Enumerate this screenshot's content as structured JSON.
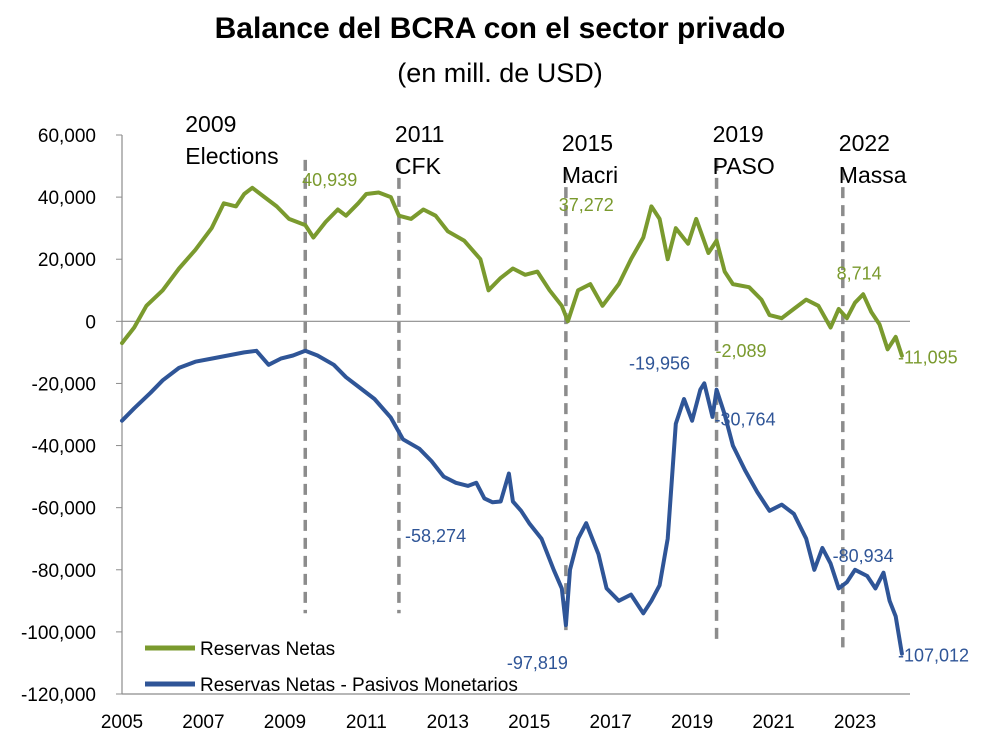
{
  "chart_data": {
    "type": "line",
    "title": "Balance del BCRA con el sector privado",
    "subtitle": "(en mill. de USD)",
    "xlabel": "",
    "ylabel": "",
    "xlim": [
      2005,
      2024.35
    ],
    "ylim": [
      -120000,
      60000
    ],
    "yticks": [
      60000,
      40000,
      20000,
      0,
      -20000,
      -40000,
      -60000,
      -80000,
      -100000,
      -120000
    ],
    "ytick_labels": [
      "60,000",
      "40,000",
      "20,000",
      "0",
      "-20,000",
      "-40,000",
      "-60,000",
      "-80,000",
      "-100,000",
      "-120,000"
    ],
    "xticks": [
      2005,
      2007,
      2009,
      2011,
      2013,
      2015,
      2017,
      2019,
      2021,
      2023
    ],
    "xtick_labels": [
      "2005",
      "2007",
      "2009",
      "2011",
      "2013",
      "2015",
      "2017",
      "2019",
      "2021",
      "2023"
    ],
    "legend_position": "bottom-left",
    "events": [
      {
        "x": 2009.5,
        "y_top": 52000,
        "y_bottom": -94000,
        "year": "2009",
        "label": "Elections"
      },
      {
        "x": 2011.8,
        "y_top": 52000,
        "y_bottom": -94000,
        "year": "2011",
        "label": "CFK"
      },
      {
        "x": 2015.9,
        "y_top": 49000,
        "y_bottom": -100000,
        "year": "2015",
        "label": "Macri"
      },
      {
        "x": 2019.6,
        "y_top": 52000,
        "y_bottom": -103000,
        "year": "2019",
        "label": "PASO"
      },
      {
        "x": 2022.7,
        "y_top": 49000,
        "y_bottom": -105000,
        "year": "2022",
        "label": "Massa"
      }
    ],
    "series": [
      {
        "name": "Reservas Netas",
        "color": "#7a9a2e",
        "points": [
          [
            2005.0,
            -7000
          ],
          [
            2005.3,
            -2000
          ],
          [
            2005.6,
            5000
          ],
          [
            2006.0,
            10000
          ],
          [
            2006.4,
            17000
          ],
          [
            2006.8,
            23000
          ],
          [
            2007.2,
            30000
          ],
          [
            2007.5,
            38000
          ],
          [
            2007.8,
            37000
          ],
          [
            2008.0,
            41000
          ],
          [
            2008.2,
            43000
          ],
          [
            2008.5,
            40000
          ],
          [
            2008.8,
            37000
          ],
          [
            2009.1,
            33000
          ],
          [
            2009.5,
            31000
          ],
          [
            2009.7,
            27000
          ],
          [
            2010.0,
            32000
          ],
          [
            2010.3,
            36000
          ],
          [
            2010.5,
            34000
          ],
          [
            2010.8,
            38000
          ],
          [
            2011.0,
            41000
          ],
          [
            2011.3,
            41500
          ],
          [
            2011.6,
            40000
          ],
          [
            2011.8,
            34000
          ],
          [
            2012.1,
            33000
          ],
          [
            2012.4,
            36000
          ],
          [
            2012.7,
            34000
          ],
          [
            2013.0,
            29000
          ],
          [
            2013.4,
            26000
          ],
          [
            2013.8,
            20000
          ],
          [
            2014.0,
            10000
          ],
          [
            2014.3,
            14000
          ],
          [
            2014.6,
            17000
          ],
          [
            2014.9,
            15000
          ],
          [
            2015.2,
            16000
          ],
          [
            2015.5,
            10000
          ],
          [
            2015.8,
            5000
          ],
          [
            2015.95,
            0
          ],
          [
            2016.2,
            10000
          ],
          [
            2016.5,
            12000
          ],
          [
            2016.8,
            5000
          ],
          [
            2017.2,
            12000
          ],
          [
            2017.5,
            20000
          ],
          [
            2017.8,
            27000
          ],
          [
            2018.0,
            37000
          ],
          [
            2018.2,
            33000
          ],
          [
            2018.4,
            20000
          ],
          [
            2018.6,
            30000
          ],
          [
            2018.9,
            25000
          ],
          [
            2019.1,
            33000
          ],
          [
            2019.4,
            22000
          ],
          [
            2019.6,
            26000
          ],
          [
            2019.8,
            16000
          ],
          [
            2020.0,
            12000
          ],
          [
            2020.4,
            11000
          ],
          [
            2020.7,
            7000
          ],
          [
            2020.9,
            2000
          ],
          [
            2021.2,
            1000
          ],
          [
            2021.5,
            4000
          ],
          [
            2021.8,
            7000
          ],
          [
            2022.1,
            5000
          ],
          [
            2022.4,
            -2000
          ],
          [
            2022.6,
            4000
          ],
          [
            2022.8,
            1000
          ],
          [
            2023.0,
            6000
          ],
          [
            2023.2,
            8714
          ],
          [
            2023.4,
            3000
          ],
          [
            2023.6,
            -1000
          ],
          [
            2023.8,
            -9000
          ],
          [
            2024.0,
            -5000
          ],
          [
            2024.15,
            -11095
          ]
        ]
      },
      {
        "name": "Reservas Netas - Pasivos Monetarios",
        "color": "#2f5597",
        "points": [
          [
            2005.0,
            -32000
          ],
          [
            2005.3,
            -28000
          ],
          [
            2005.7,
            -23000
          ],
          [
            2006.0,
            -19000
          ],
          [
            2006.4,
            -15000
          ],
          [
            2006.8,
            -13000
          ],
          [
            2007.2,
            -12000
          ],
          [
            2007.6,
            -11000
          ],
          [
            2008.0,
            -10000
          ],
          [
            2008.3,
            -9500
          ],
          [
            2008.6,
            -14000
          ],
          [
            2008.9,
            -12000
          ],
          [
            2009.2,
            -11000
          ],
          [
            2009.5,
            -9500
          ],
          [
            2009.8,
            -11000
          ],
          [
            2010.2,
            -14000
          ],
          [
            2010.5,
            -18000
          ],
          [
            2010.8,
            -21000
          ],
          [
            2011.2,
            -25000
          ],
          [
            2011.6,
            -31000
          ],
          [
            2011.9,
            -38000
          ],
          [
            2012.3,
            -41000
          ],
          [
            2012.6,
            -45000
          ],
          [
            2012.9,
            -50000
          ],
          [
            2013.2,
            -52000
          ],
          [
            2013.5,
            -53000
          ],
          [
            2013.7,
            -52000
          ],
          [
            2013.9,
            -57000
          ],
          [
            2014.1,
            -58274
          ],
          [
            2014.3,
            -58000
          ],
          [
            2014.5,
            -49000
          ],
          [
            2014.6,
            -58000
          ],
          [
            2014.8,
            -61000
          ],
          [
            2015.0,
            -65000
          ],
          [
            2015.3,
            -70000
          ],
          [
            2015.6,
            -80000
          ],
          [
            2015.8,
            -86000
          ],
          [
            2015.9,
            -97819
          ],
          [
            2016.0,
            -80000
          ],
          [
            2016.2,
            -70000
          ],
          [
            2016.4,
            -65000
          ],
          [
            2016.7,
            -75000
          ],
          [
            2016.9,
            -86000
          ],
          [
            2017.2,
            -90000
          ],
          [
            2017.5,
            -88000
          ],
          [
            2017.8,
            -94000
          ],
          [
            2018.0,
            -90000
          ],
          [
            2018.2,
            -85000
          ],
          [
            2018.4,
            -70000
          ],
          [
            2018.6,
            -33000
          ],
          [
            2018.8,
            -25000
          ],
          [
            2019.0,
            -32000
          ],
          [
            2019.2,
            -22000
          ],
          [
            2019.3,
            -19956
          ],
          [
            2019.5,
            -30764
          ],
          [
            2019.6,
            -22000
          ],
          [
            2019.8,
            -30000
          ],
          [
            2020.0,
            -40000
          ],
          [
            2020.3,
            -48000
          ],
          [
            2020.6,
            -55000
          ],
          [
            2020.9,
            -61000
          ],
          [
            2021.2,
            -59000
          ],
          [
            2021.5,
            -62000
          ],
          [
            2021.8,
            -70000
          ],
          [
            2022.0,
            -80000
          ],
          [
            2022.2,
            -73000
          ],
          [
            2022.4,
            -78000
          ],
          [
            2022.6,
            -86000
          ],
          [
            2022.8,
            -84000
          ],
          [
            2023.0,
            -80000
          ],
          [
            2023.3,
            -82000
          ],
          [
            2023.5,
            -86000
          ],
          [
            2023.7,
            -80934
          ],
          [
            2023.85,
            -90000
          ],
          [
            2024.0,
            -95000
          ],
          [
            2024.15,
            -107012
          ]
        ]
      }
    ],
    "annotations": [
      {
        "text": "40,939",
        "x": 2010.1,
        "y": 43500,
        "series": 0
      },
      {
        "text": "37,272",
        "x": 2016.4,
        "y": 35500,
        "series": 0
      },
      {
        "text": "8,714",
        "x": 2023.1,
        "y": 13500,
        "series": 0
      },
      {
        "text": "-2,089",
        "x": 2020.2,
        "y": -11500,
        "series": 0
      },
      {
        "text": "-11,095",
        "x": 2024.3,
        "y": -13500,
        "series": 0
      },
      {
        "text": "-19,956",
        "x": 2018.2,
        "y": -15500,
        "series": 1
      },
      {
        "text": "-30,764",
        "x": 2020.3,
        "y": -33500,
        "series": 1
      },
      {
        "text": "-58,274",
        "x": 2012.7,
        "y": -71000,
        "series": 1
      },
      {
        "text": "-97,819",
        "x": 2015.2,
        "y": -112000,
        "series": 1
      },
      {
        "text": "-80,934",
        "x": 2023.2,
        "y": -77500,
        "series": 1
      },
      {
        "text": "-107,012",
        "x": 2024.3,
        "y": -109500,
        "series": 1
      }
    ]
  }
}
